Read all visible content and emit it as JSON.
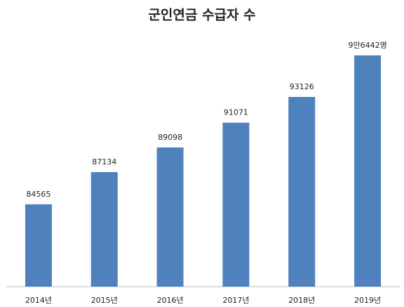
{
  "chart_data": {
    "type": "bar",
    "title": "군인연금 수급자 수",
    "categories": [
      "2014년",
      "2015년",
      "2016년",
      "2017년",
      "2018년",
      "2019년"
    ],
    "values": [
      84565,
      87134,
      89098,
      91071,
      93126,
      96442
    ],
    "value_labels": [
      "84565",
      "87134",
      "89098",
      "91071",
      "93126",
      "9만6442명"
    ],
    "color": "#4f81bd",
    "ylim": [
      78000,
      98000
    ]
  }
}
